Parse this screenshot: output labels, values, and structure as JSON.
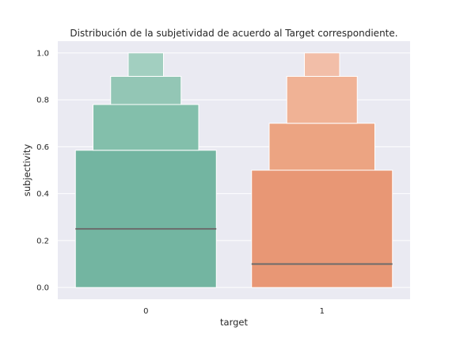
{
  "chart_data": {
    "type": "boxen",
    "title": "Distribución de la subjetividad de acuerdo al Target correspondiente.",
    "xlabel": "target",
    "ylabel": "subjectivity",
    "categories": [
      "0",
      "1"
    ],
    "ylim": [
      -0.05,
      1.05
    ],
    "yticks": [
      0.0,
      0.2,
      0.4,
      0.6,
      0.8,
      1.0
    ],
    "ytick_labels": [
      "0.0",
      "0.2",
      "0.4",
      "0.6",
      "0.8",
      "1.0"
    ],
    "grid": true,
    "background": "#eaeaf2",
    "median_color": "#6b6b6b",
    "boxes": [
      {
        "category": "0",
        "median": 0.25,
        "levels": [
          {
            "low": 0.0,
            "high": 0.585,
            "color": "#73b5a1"
          },
          {
            "low": 0.585,
            "high": 0.78,
            "color": "#83bfab"
          },
          {
            "low": 0.78,
            "high": 0.9,
            "color": "#93c6b5"
          },
          {
            "low": 0.9,
            "high": 1.0,
            "color": "#a2cfc0"
          }
        ]
      },
      {
        "category": "1",
        "median": 0.1,
        "levels": [
          {
            "low": 0.0,
            "high": 0.5,
            "color": "#e89775"
          },
          {
            "low": 0.5,
            "high": 0.7,
            "color": "#eca482"
          },
          {
            "low": 0.7,
            "high": 0.9,
            "color": "#f0b295"
          },
          {
            "low": 0.9,
            "high": 1.0,
            "color": "#f2bea8"
          }
        ]
      }
    ]
  }
}
